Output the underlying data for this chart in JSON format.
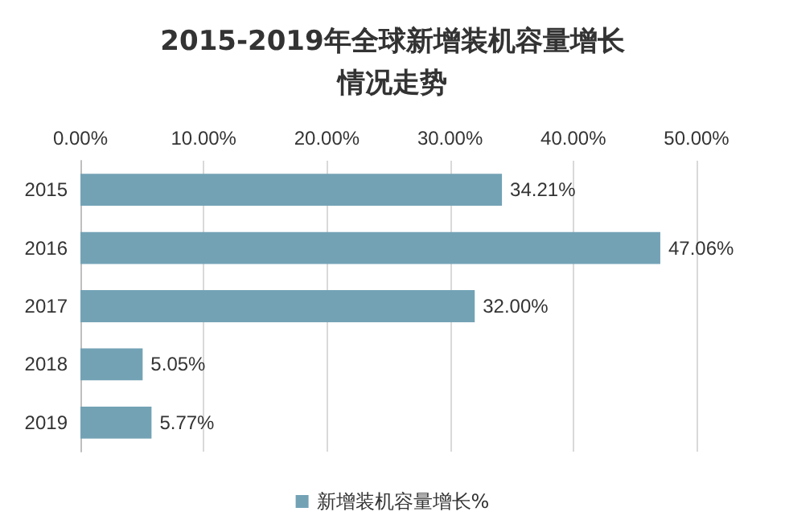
{
  "chart_data": {
    "type": "bar",
    "orientation": "horizontal",
    "title": "2015-2019年全球新增装机容量增长情况走势",
    "categories": [
      "2015",
      "2016",
      "2017",
      "2018",
      "2019"
    ],
    "series": [
      {
        "name": "新增装机容量增长%",
        "color": "#73a2b5",
        "values": [
          34.21,
          47.06,
          32.0,
          5.05,
          5.77
        ],
        "value_labels": [
          "34.21%",
          "47.06%",
          "32.00%",
          "5.05%",
          "5.77%"
        ]
      }
    ],
    "xlim": [
      0,
      50
    ],
    "xticks": [
      {
        "value": 0,
        "label": "0.00%"
      },
      {
        "value": 10,
        "label": "10.00%"
      },
      {
        "value": 20,
        "label": "20.00%"
      },
      {
        "value": 30,
        "label": "30.00%"
      },
      {
        "value": 40,
        "label": "40.00%"
      },
      {
        "value": 50,
        "label": "50.00%"
      }
    ],
    "grid": "x",
    "legend": "bottom"
  }
}
